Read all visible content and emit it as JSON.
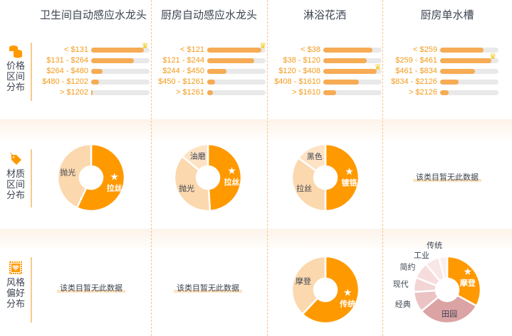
{
  "columns": [
    "卫生间自动感应水龙头",
    "厨房自动感应水龙头",
    "淋浴花洒",
    "厨房单水槽"
  ],
  "sections": [
    {
      "label": "价格区间分布",
      "icon": "coins-icon"
    },
    {
      "label": "材质区间分布",
      "icon": "tag-icon"
    },
    {
      "label": "风格偏好分布",
      "icon": "heart-stamp-icon"
    }
  ],
  "colors": {
    "accent": "#ff9900",
    "bar": "#f6ab55",
    "light": "#fbd8ad",
    "track": "#e9e9e9",
    "price_text": "#f39a1a"
  },
  "price": [
    [
      {
        "label": "< $131",
        "value": 0.9,
        "top": true
      },
      {
        "label": "$131 - $264",
        "value": 0.73
      },
      {
        "label": "$264 - $480",
        "value": 0.2
      },
      {
        "label": "$480 - $1202",
        "value": 0.13
      },
      {
        "label": "> $1202",
        "value": 0.03
      }
    ],
    [
      {
        "label": "< $121",
        "value": 0.93,
        "top": true
      },
      {
        "label": "$121 - $244",
        "value": 0.8
      },
      {
        "label": "$244 - $450",
        "value": 0.33
      },
      {
        "label": "$450 - $1261",
        "value": 0.13
      },
      {
        "label": "> $1261",
        "value": 0.1
      }
    ],
    [
      {
        "label": "< $38",
        "value": 0.84
      },
      {
        "label": "$38 - $120",
        "value": 0.74
      },
      {
        "label": "$120 - $408",
        "value": 0.91,
        "top": true
      },
      {
        "label": "$408 - $1610",
        "value": 0.61
      },
      {
        "label": "> $1610",
        "value": 0.22
      }
    ],
    [
      {
        "label": "< $259",
        "value": 0.74
      },
      {
        "label": "$259 - $461",
        "value": 0.88,
        "top": true
      },
      {
        "label": "$461 - $834",
        "value": 0.6
      },
      {
        "label": "$834 - $2126",
        "value": 0.32
      },
      {
        "label": "> $2126",
        "value": 0.15
      }
    ]
  ],
  "material": [
    [
      {
        "label": "拉丝",
        "value": 57,
        "top": true
      },
      {
        "label": "抛光",
        "value": 43
      }
    ],
    [
      {
        "label": "拉丝",
        "value": 49,
        "top": true
      },
      {
        "label": "抛光",
        "value": 37
      },
      {
        "label": "油磨",
        "value": 14
      }
    ],
    [
      {
        "label": "镀铬",
        "value": 50,
        "top": true
      },
      {
        "label": "拉丝",
        "value": 35
      },
      {
        "label": "黑色",
        "value": 15
      }
    ],
    null
  ],
  "style": [
    null,
    null,
    [
      {
        "label": "传统",
        "value": 62,
        "top": true
      },
      {
        "label": "摩登",
        "value": 38
      }
    ],
    [
      {
        "label": "摩登",
        "value": 33,
        "top": true
      },
      {
        "label": "田园",
        "value": 31
      },
      {
        "label": "经典",
        "value": 10
      },
      {
        "label": "现代",
        "value": 7
      },
      {
        "label": "简约",
        "value": 8
      },
      {
        "label": "工业",
        "value": 7
      },
      {
        "label": "传统",
        "value": 4
      }
    ]
  ],
  "no_data": "该类目暂无此数据",
  "star": "★"
}
